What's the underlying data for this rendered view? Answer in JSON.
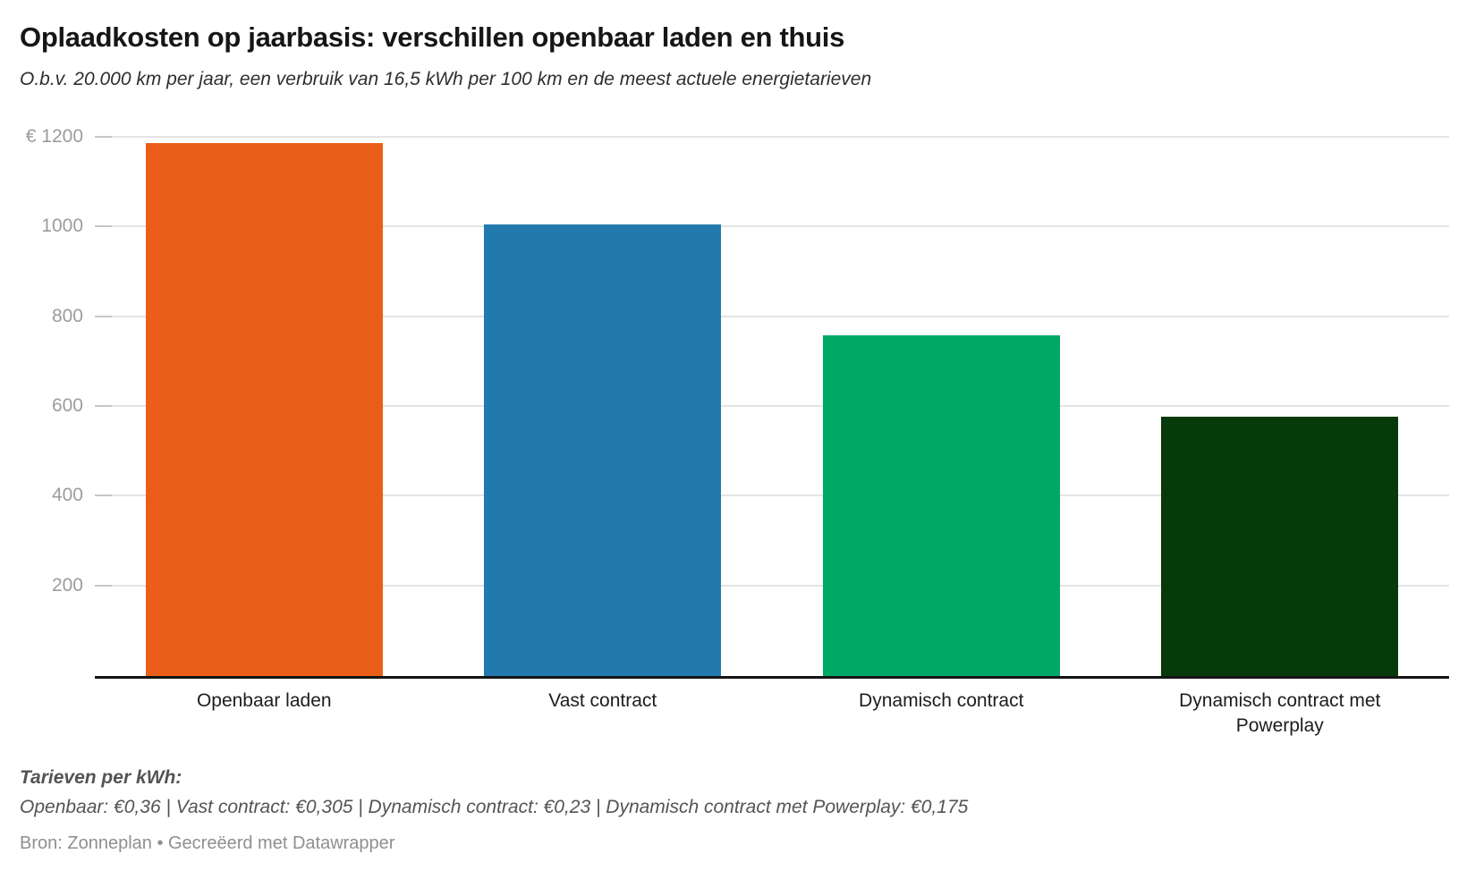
{
  "header": {
    "title": "Oplaadkosten op jaarbasis: verschillen openbaar laden en thuis",
    "subtitle": "O.b.v. 20.000 km per jaar, een verbruik van 16,5 kWh per 100 km en de meest actuele energietarieven"
  },
  "chart_data": {
    "type": "bar",
    "categories": [
      "Openbaar laden",
      "Vast contract",
      "Dynamisch contract",
      "Dynamisch contract met Powerplay"
    ],
    "values": [
      1188,
      1006.5,
      759,
      577.5
    ],
    "bar_colors": [
      "#ea5e19",
      "#2279ae",
      "#00a866",
      "#073a0a"
    ],
    "title": "Oplaadkosten op jaarbasis: verschillen openbaar laden en thuis",
    "xlabel": "",
    "ylabel": "",
    "ylim": [
      0,
      1250
    ],
    "yticks": [
      {
        "value": 1200,
        "label": "€ 1200"
      },
      {
        "value": 1000,
        "label": "1000"
      },
      {
        "value": 800,
        "label": "800"
      },
      {
        "value": 600,
        "label": "600"
      },
      {
        "value": 400,
        "label": "400"
      },
      {
        "value": 200,
        "label": "200"
      }
    ],
    "grid": "horizontal",
    "legend": "none",
    "gridline_color": "#e4e4e4",
    "axis_line_color": "#141414",
    "tick_label_color": "#9c9c9c"
  },
  "footer": {
    "tariffs_heading": "Tarieven per kWh:",
    "tariffs_line": "Openbaar: €0,36 | Vast contract: €0,305 | Dynamisch contract: €0,23 | Dynamisch contract met Powerplay: €0,175",
    "source_line": "Bron: Zonneplan • Gecreëerd met Datawrapper"
  }
}
